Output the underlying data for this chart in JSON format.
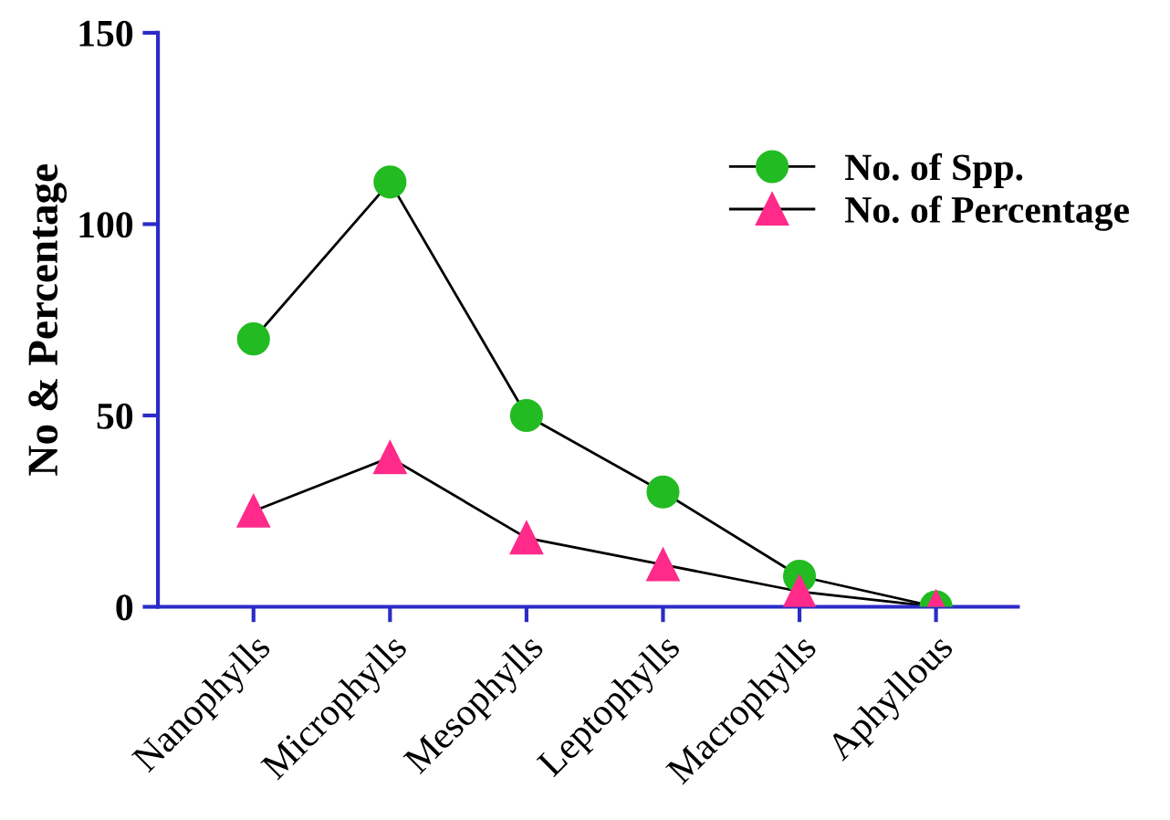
{
  "chart_data": {
    "type": "line",
    "ylabel": "No & Percentage",
    "categories": [
      "Nanophylls",
      "Microphylls",
      "Mesophylls",
      "Leptophylls",
      "Macrophylls",
      "Aphyllous"
    ],
    "series": [
      {
        "name": "No. of Spp.",
        "color": "#22bb22",
        "marker": "circle",
        "values": [
          70,
          111,
          50,
          30,
          8,
          0
        ]
      },
      {
        "name": "No. of Percentage",
        "color": "#ff2a8a",
        "marker": "triangle",
        "values": [
          25,
          39,
          18,
          11,
          4,
          0
        ]
      }
    ],
    "ylim": [
      0,
      150
    ],
    "yticks": [
      0,
      50,
      100,
      150
    ],
    "grid": false,
    "legend": "top right"
  }
}
